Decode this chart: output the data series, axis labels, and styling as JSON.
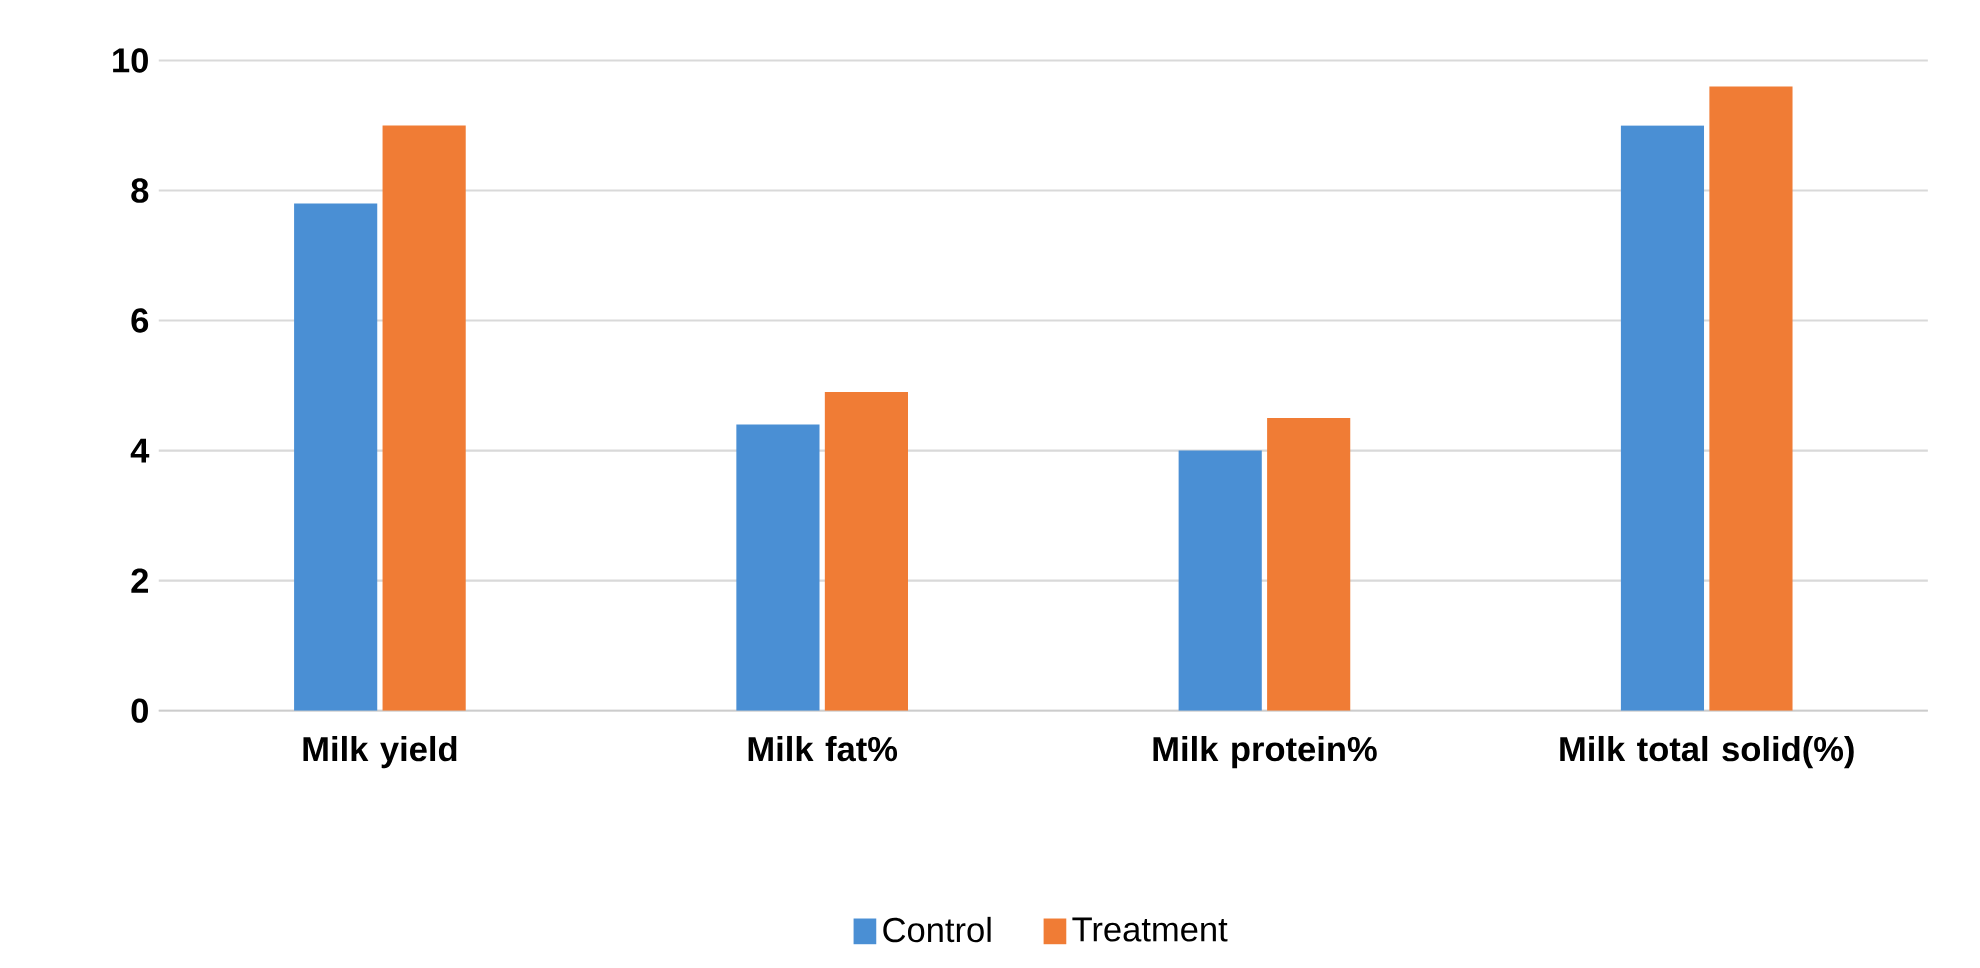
{
  "chart_data": {
    "type": "bar",
    "categories": [
      "Milk yield",
      "Milk fat%",
      "Milk protein%",
      "Milk total solid(%)"
    ],
    "series": [
      {
        "name": "Control",
        "color": "#4a8fd4",
        "values": [
          7.8,
          4.4,
          4.0,
          9.0
        ]
      },
      {
        "name": "Treatment",
        "color": "#f07c35",
        "values": [
          9.0,
          4.9,
          4.5,
          9.6
        ]
      }
    ],
    "ylim": [
      0,
      10
    ],
    "yticks": [
      0,
      2,
      4,
      6,
      8,
      10
    ],
    "grid": "y",
    "legend": "bottom"
  }
}
